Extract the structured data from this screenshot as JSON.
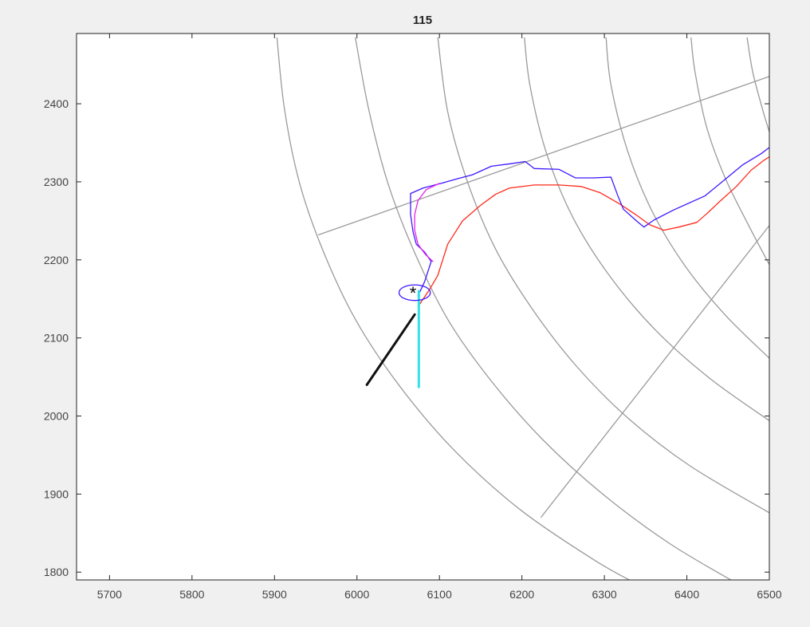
{
  "chart_data": {
    "type": "line",
    "title": "115",
    "xlabel": "",
    "ylabel": "",
    "xlim": [
      5660,
      6500
    ],
    "ylim": [
      1790,
      2490
    ],
    "xticks": [
      5700,
      5800,
      5900,
      6000,
      6100,
      6200,
      6300,
      6400,
      6500
    ],
    "yticks": [
      1800,
      1900,
      2000,
      2100,
      2200,
      2300,
      2400
    ],
    "grid": false,
    "background_color": "#f0f0f0",
    "plot_background": "#ffffff",
    "polar_grid": {
      "color": "#9a9a9a",
      "arcs": [
        {
          "points": [
            [
              5903,
              2485
            ],
            [
              5912,
              2394
            ],
            [
              5930,
              2300
            ],
            [
              5958,
              2214
            ],
            [
              5998,
              2124
            ],
            [
              6052,
              2038
            ],
            [
              6118,
              1956
            ],
            [
              6198,
              1880
            ],
            [
              6290,
              1814
            ],
            [
              6345,
              1782
            ]
          ]
        },
        {
          "points": [
            [
              5998,
              2485
            ],
            [
              6014,
              2394
            ],
            [
              6037,
              2300
            ],
            [
              6068,
              2214
            ],
            [
              6110,
              2124
            ],
            [
              6162,
              2046
            ],
            [
              6225,
              1970
            ],
            [
              6298,
              1900
            ],
            [
              6380,
              1836
            ],
            [
              6470,
              1780
            ]
          ]
        },
        {
          "points": [
            [
              6098,
              2485
            ],
            [
              6110,
              2390
            ],
            [
              6134,
              2300
            ],
            [
              6168,
              2214
            ],
            [
              6212,
              2138
            ],
            [
              6266,
              2064
            ],
            [
              6330,
              1996
            ],
            [
              6404,
              1936
            ],
            [
              6500,
              1876
            ]
          ]
        },
        {
          "points": [
            [
              6203,
              2485
            ],
            [
              6210,
              2422
            ],
            [
              6230,
              2336
            ],
            [
              6262,
              2254
            ],
            [
              6306,
              2180
            ],
            [
              6362,
              2110
            ],
            [
              6428,
              2048
            ],
            [
              6500,
              1994
            ]
          ]
        },
        {
          "points": [
            [
              6302,
              2485
            ],
            [
              6308,
              2424
            ],
            [
              6328,
              2340
            ],
            [
              6358,
              2262
            ],
            [
              6398,
              2192
            ],
            [
              6446,
              2130
            ],
            [
              6500,
              2074
            ]
          ]
        },
        {
          "points": [
            [
              6405,
              2485
            ],
            [
              6410,
              2440
            ],
            [
              6424,
              2370
            ],
            [
              6446,
              2306
            ],
            [
              6474,
              2246
            ],
            [
              6500,
              2194
            ]
          ]
        },
        {
          "points": [
            [
              6473,
              2485
            ],
            [
              6480,
              2440
            ],
            [
              6492,
              2392
            ],
            [
              6500,
              2364
            ]
          ]
        }
      ],
      "radials": [
        {
          "points": [
            [
              5953,
              2232
            ],
            [
              6500,
              2435
            ]
          ]
        },
        {
          "points": [
            [
              6223,
              1870
            ],
            [
              6500,
              2244
            ]
          ]
        }
      ]
    },
    "series": [
      {
        "color": "#ff2a1a",
        "width": 1.3,
        "points": [
          [
            6074,
            2140
          ],
          [
            6088,
            2162
          ],
          [
            6098,
            2180
          ],
          [
            6110,
            2220
          ],
          [
            6128,
            2250
          ],
          [
            6150,
            2270
          ],
          [
            6168,
            2284
          ],
          [
            6185,
            2292
          ],
          [
            6215,
            2296
          ],
          [
            6245,
            2296
          ],
          [
            6272,
            2294
          ],
          [
            6295,
            2286
          ],
          [
            6318,
            2272
          ],
          [
            6338,
            2258
          ],
          [
            6355,
            2245
          ],
          [
            6372,
            2238
          ],
          [
            6390,
            2242
          ],
          [
            6412,
            2248
          ],
          [
            6425,
            2260
          ],
          [
            6440,
            2275
          ],
          [
            6460,
            2294
          ],
          [
            6478,
            2315
          ],
          [
            6494,
            2328
          ],
          [
            6500,
            2332
          ]
        ]
      },
      {
        "color": "#3b19ff",
        "width": 1.3,
        "points": [
          [
            6074,
            2154
          ],
          [
            6082,
            2172
          ],
          [
            6090,
            2198
          ],
          [
            6082,
            2210
          ],
          [
            6072,
            2220
          ],
          [
            6068,
            2236
          ],
          [
            6065,
            2258
          ],
          [
            6065,
            2285
          ],
          [
            6080,
            2292
          ],
          [
            6102,
            2298
          ],
          [
            6122,
            2304
          ],
          [
            6140,
            2309
          ],
          [
            6163,
            2320
          ],
          [
            6185,
            2323
          ],
          [
            6204,
            2326
          ],
          [
            6215,
            2317
          ],
          [
            6245,
            2316
          ],
          [
            6265,
            2305
          ],
          [
            6287,
            2305
          ],
          [
            6308,
            2306
          ],
          [
            6316,
            2283
          ],
          [
            6323,
            2265
          ],
          [
            6340,
            2249
          ],
          [
            6348,
            2242
          ],
          [
            6360,
            2251
          ],
          [
            6384,
            2264
          ],
          [
            6422,
            2282
          ],
          [
            6445,
            2302
          ],
          [
            6468,
            2322
          ],
          [
            6490,
            2336
          ],
          [
            6500,
            2344
          ]
        ]
      },
      {
        "color": "#e61fe8",
        "width": 1.3,
        "points": [
          [
            6092,
            2198
          ],
          [
            6083,
            2207
          ],
          [
            6074,
            2220
          ],
          [
            6070,
            2238
          ],
          [
            6070,
            2258
          ],
          [
            6074,
            2276
          ],
          [
            6084,
            2290
          ],
          [
            6100,
            2298
          ]
        ]
      },
      {
        "color": "#111111",
        "width": 3,
        "points": [
          [
            6012,
            2040
          ],
          [
            6070,
            2130
          ]
        ]
      },
      {
        "color": "#33e0e6",
        "width": 3,
        "points": [
          [
            6075,
            2160
          ],
          [
            6075,
            2037
          ]
        ]
      }
    ],
    "ellipse": {
      "color": "#3b19ff",
      "center": [
        6070,
        2158
      ],
      "rx": 19,
      "ry": 10
    },
    "marker": {
      "symbol": "*",
      "color": "#000000",
      "point": [
        6068,
        2159
      ]
    }
  }
}
